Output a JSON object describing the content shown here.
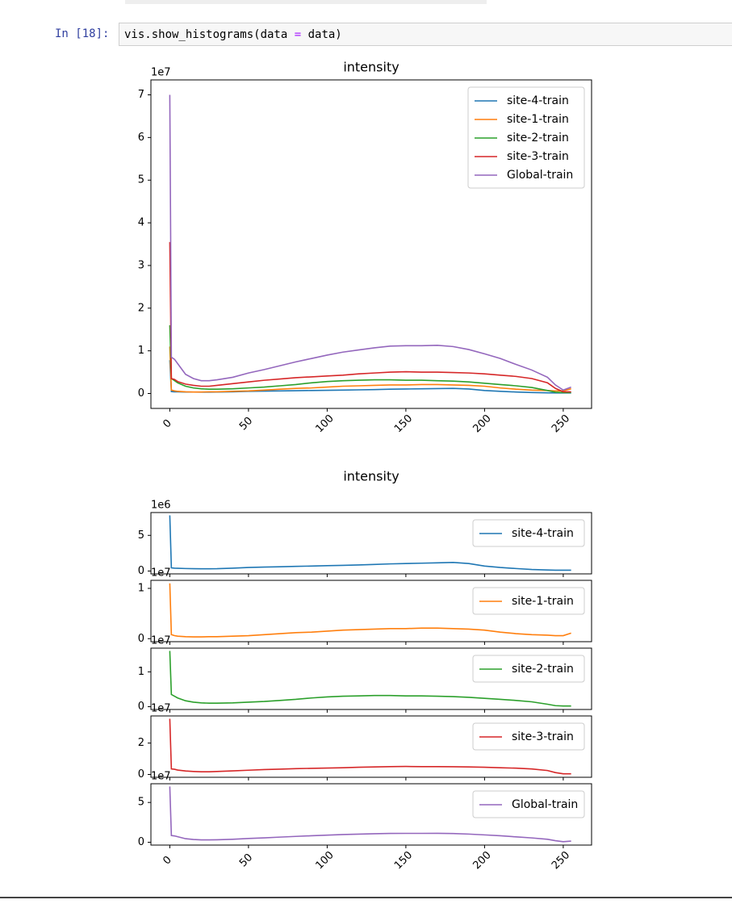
{
  "cell": {
    "prompt": "In [18]:",
    "code": [
      "vis.show_histograms(data ",
      "=",
      " data)"
    ]
  },
  "chart_data": [
    {
      "type": "line",
      "title": "intensity",
      "y_offset_label": "1e7",
      "x": [
        0,
        1,
        3,
        5,
        10,
        15,
        20,
        25,
        30,
        40,
        50,
        60,
        70,
        80,
        90,
        100,
        110,
        120,
        130,
        140,
        150,
        160,
        170,
        180,
        190,
        200,
        210,
        220,
        230,
        240,
        245,
        250,
        255
      ],
      "xlim": [
        -12,
        268
      ],
      "xticks": [
        0,
        50,
        100,
        150,
        200,
        250
      ],
      "show_xtick_labels": true,
      "ylim": [
        -0.35,
        7.35
      ],
      "yticks": [
        0,
        1,
        2,
        3,
        4,
        5,
        6,
        7
      ],
      "legend": "upper right",
      "series": [
        {
          "name": "site-4-train",
          "color": "#1f77b4",
          "values": [
            0.78,
            0.045,
            0.04,
            0.038,
            0.035,
            0.033,
            0.032,
            0.032,
            0.033,
            0.04,
            0.05,
            0.055,
            0.06,
            0.065,
            0.07,
            0.075,
            0.08,
            0.085,
            0.092,
            0.1,
            0.105,
            0.11,
            0.115,
            0.12,
            0.105,
            0.07,
            0.05,
            0.035,
            0.022,
            0.015,
            0.012,
            0.012,
            0.012
          ]
        },
        {
          "name": "site-1-train",
          "color": "#ff7f0e",
          "values": [
            1.1,
            0.08,
            0.06,
            0.05,
            0.04,
            0.035,
            0.035,
            0.04,
            0.04,
            0.05,
            0.06,
            0.08,
            0.1,
            0.12,
            0.13,
            0.15,
            0.17,
            0.18,
            0.19,
            0.2,
            0.2,
            0.21,
            0.21,
            0.2,
            0.19,
            0.17,
            0.13,
            0.1,
            0.08,
            0.07,
            0.06,
            0.06,
            0.11
          ]
        },
        {
          "name": "site-2-train",
          "color": "#2ca02c",
          "values": [
            1.6,
            0.35,
            0.3,
            0.25,
            0.17,
            0.13,
            0.11,
            0.1,
            0.1,
            0.11,
            0.13,
            0.15,
            0.18,
            0.21,
            0.25,
            0.28,
            0.3,
            0.31,
            0.32,
            0.32,
            0.31,
            0.31,
            0.3,
            0.29,
            0.27,
            0.24,
            0.21,
            0.18,
            0.14,
            0.07,
            0.03,
            0.02,
            0.02
          ]
        },
        {
          "name": "site-3-train",
          "color": "#d62728",
          "values": [
            3.55,
            0.35,
            0.33,
            0.28,
            0.22,
            0.19,
            0.17,
            0.17,
            0.19,
            0.23,
            0.27,
            0.31,
            0.34,
            0.37,
            0.39,
            0.41,
            0.43,
            0.46,
            0.48,
            0.5,
            0.51,
            0.5,
            0.5,
            0.49,
            0.48,
            0.46,
            0.43,
            0.4,
            0.35,
            0.25,
            0.12,
            0.04,
            0.04
          ]
        },
        {
          "name": "Global-train",
          "color": "#9467bd",
          "values": [
            7.0,
            0.85,
            0.8,
            0.7,
            0.45,
            0.35,
            0.3,
            0.3,
            0.32,
            0.38,
            0.48,
            0.56,
            0.65,
            0.74,
            0.82,
            0.9,
            0.97,
            1.02,
            1.07,
            1.11,
            1.12,
            1.12,
            1.13,
            1.1,
            1.03,
            0.93,
            0.82,
            0.68,
            0.55,
            0.38,
            0.2,
            0.08,
            0.15
          ]
        }
      ]
    },
    {
      "type": "line",
      "title": "intensity",
      "y_offset_label": "1e6",
      "x": [
        0,
        1,
        3,
        5,
        10,
        15,
        20,
        25,
        30,
        40,
        50,
        60,
        70,
        80,
        90,
        100,
        110,
        120,
        130,
        140,
        150,
        160,
        170,
        180,
        190,
        200,
        210,
        220,
        230,
        240,
        245,
        250,
        255
      ],
      "xlim": [
        -12,
        268
      ],
      "xticks": [
        0,
        50,
        100,
        150,
        200,
        250
      ],
      "show_xtick_labels": false,
      "ylim": [
        -0.4,
        8.2
      ],
      "yticks": [
        0,
        5
      ],
      "legend": "upper right",
      "series": [
        {
          "name": "site-4-train",
          "color": "#1f77b4",
          "values": [
            7.8,
            0.45,
            0.4,
            0.38,
            0.35,
            0.33,
            0.32,
            0.32,
            0.33,
            0.4,
            0.5,
            0.55,
            0.6,
            0.65,
            0.7,
            0.75,
            0.8,
            0.85,
            0.92,
            1.0,
            1.05,
            1.1,
            1.15,
            1.2,
            1.05,
            0.7,
            0.5,
            0.35,
            0.22,
            0.15,
            0.12,
            0.12,
            0.12
          ]
        }
      ]
    },
    {
      "type": "line",
      "y_offset_label": "1e7",
      "x": [
        0,
        1,
        3,
        5,
        10,
        15,
        20,
        25,
        30,
        40,
        50,
        60,
        70,
        80,
        90,
        100,
        110,
        120,
        130,
        140,
        150,
        160,
        170,
        180,
        190,
        200,
        210,
        220,
        230,
        240,
        245,
        250,
        255
      ],
      "xlim": [
        -12,
        268
      ],
      "xticks": [
        0,
        50,
        100,
        150,
        200,
        250
      ],
      "show_xtick_labels": false,
      "ylim": [
        -0.06,
        1.16
      ],
      "yticks": [
        0,
        1
      ],
      "legend": "upper right",
      "series": [
        {
          "name": "site-1-train",
          "color": "#ff7f0e",
          "values": [
            1.1,
            0.08,
            0.06,
            0.05,
            0.04,
            0.035,
            0.035,
            0.04,
            0.04,
            0.05,
            0.06,
            0.08,
            0.1,
            0.12,
            0.13,
            0.15,
            0.17,
            0.18,
            0.19,
            0.2,
            0.2,
            0.21,
            0.21,
            0.2,
            0.19,
            0.17,
            0.13,
            0.1,
            0.08,
            0.07,
            0.06,
            0.06,
            0.11
          ]
        }
      ]
    },
    {
      "type": "line",
      "y_offset_label": "1e7",
      "x": [
        0,
        1,
        3,
        5,
        10,
        15,
        20,
        25,
        30,
        40,
        50,
        60,
        70,
        80,
        90,
        100,
        110,
        120,
        130,
        140,
        150,
        160,
        170,
        180,
        190,
        200,
        210,
        220,
        230,
        240,
        245,
        250,
        255
      ],
      "xlim": [
        -12,
        268
      ],
      "xticks": [
        0,
        50,
        100,
        150,
        200,
        250
      ],
      "show_xtick_labels": false,
      "ylim": [
        -0.08,
        1.68
      ],
      "yticks": [
        0,
        1
      ],
      "legend": "upper right",
      "series": [
        {
          "name": "site-2-train",
          "color": "#2ca02c",
          "values": [
            1.6,
            0.35,
            0.3,
            0.25,
            0.17,
            0.13,
            0.11,
            0.1,
            0.1,
            0.11,
            0.13,
            0.15,
            0.18,
            0.21,
            0.25,
            0.28,
            0.3,
            0.31,
            0.32,
            0.32,
            0.31,
            0.31,
            0.3,
            0.29,
            0.27,
            0.24,
            0.21,
            0.18,
            0.14,
            0.07,
            0.03,
            0.02,
            0.02
          ]
        }
      ]
    },
    {
      "type": "line",
      "y_offset_label": "1e7",
      "x": [
        0,
        1,
        3,
        5,
        10,
        15,
        20,
        25,
        30,
        40,
        50,
        60,
        70,
        80,
        90,
        100,
        110,
        120,
        130,
        140,
        150,
        160,
        170,
        180,
        190,
        200,
        210,
        220,
        230,
        240,
        245,
        250,
        255
      ],
      "xlim": [
        -12,
        268
      ],
      "xticks": [
        0,
        50,
        100,
        150,
        200,
        250
      ],
      "show_xtick_labels": false,
      "ylim": [
        -0.18,
        3.73
      ],
      "yticks": [
        0,
        2
      ],
      "legend": "upper right",
      "series": [
        {
          "name": "site-3-train",
          "color": "#d62728",
          "values": [
            3.55,
            0.35,
            0.33,
            0.28,
            0.22,
            0.19,
            0.17,
            0.17,
            0.19,
            0.23,
            0.27,
            0.31,
            0.34,
            0.37,
            0.39,
            0.41,
            0.43,
            0.46,
            0.48,
            0.5,
            0.51,
            0.5,
            0.5,
            0.49,
            0.48,
            0.46,
            0.43,
            0.4,
            0.35,
            0.25,
            0.12,
            0.04,
            0.04
          ]
        }
      ]
    },
    {
      "type": "line",
      "y_offset_label": "1e7",
      "x": [
        0,
        1,
        3,
        5,
        10,
        15,
        20,
        25,
        30,
        40,
        50,
        60,
        70,
        80,
        90,
        100,
        110,
        120,
        130,
        140,
        150,
        160,
        170,
        180,
        190,
        200,
        210,
        220,
        230,
        240,
        245,
        250,
        255
      ],
      "xlim": [
        -12,
        268
      ],
      "xticks": [
        0,
        50,
        100,
        150,
        200,
        250
      ],
      "show_xtick_labels": true,
      "ylim": [
        -0.35,
        7.35
      ],
      "yticks": [
        0,
        5
      ],
      "legend": "upper right",
      "series": [
        {
          "name": "Global-train",
          "color": "#9467bd",
          "values": [
            7.0,
            0.85,
            0.8,
            0.7,
            0.45,
            0.35,
            0.3,
            0.3,
            0.32,
            0.38,
            0.48,
            0.56,
            0.65,
            0.74,
            0.82,
            0.9,
            0.97,
            1.02,
            1.07,
            1.11,
            1.12,
            1.12,
            1.13,
            1.1,
            1.03,
            0.93,
            0.82,
            0.68,
            0.55,
            0.38,
            0.2,
            0.08,
            0.15
          ]
        }
      ]
    }
  ]
}
